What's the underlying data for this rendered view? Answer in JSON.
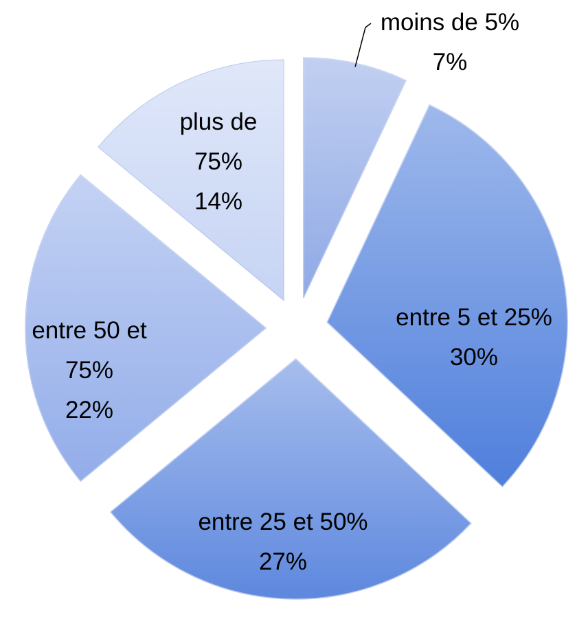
{
  "chart_data": {
    "type": "pie",
    "categories": [
      "moins de 5%",
      "entre 5 et 25%",
      "entre 25 et 50%",
      "entre 50 et 75%",
      "plus de 75%"
    ],
    "values": [
      7,
      30,
      27,
      22,
      14
    ],
    "value_labels": [
      "7%",
      "30%",
      "27%",
      "22%",
      "14%"
    ],
    "colors": [
      "#8fa9e6",
      "#4f7fdc",
      "#5e88de",
      "#93adea",
      "#c6d4f4"
    ]
  }
}
